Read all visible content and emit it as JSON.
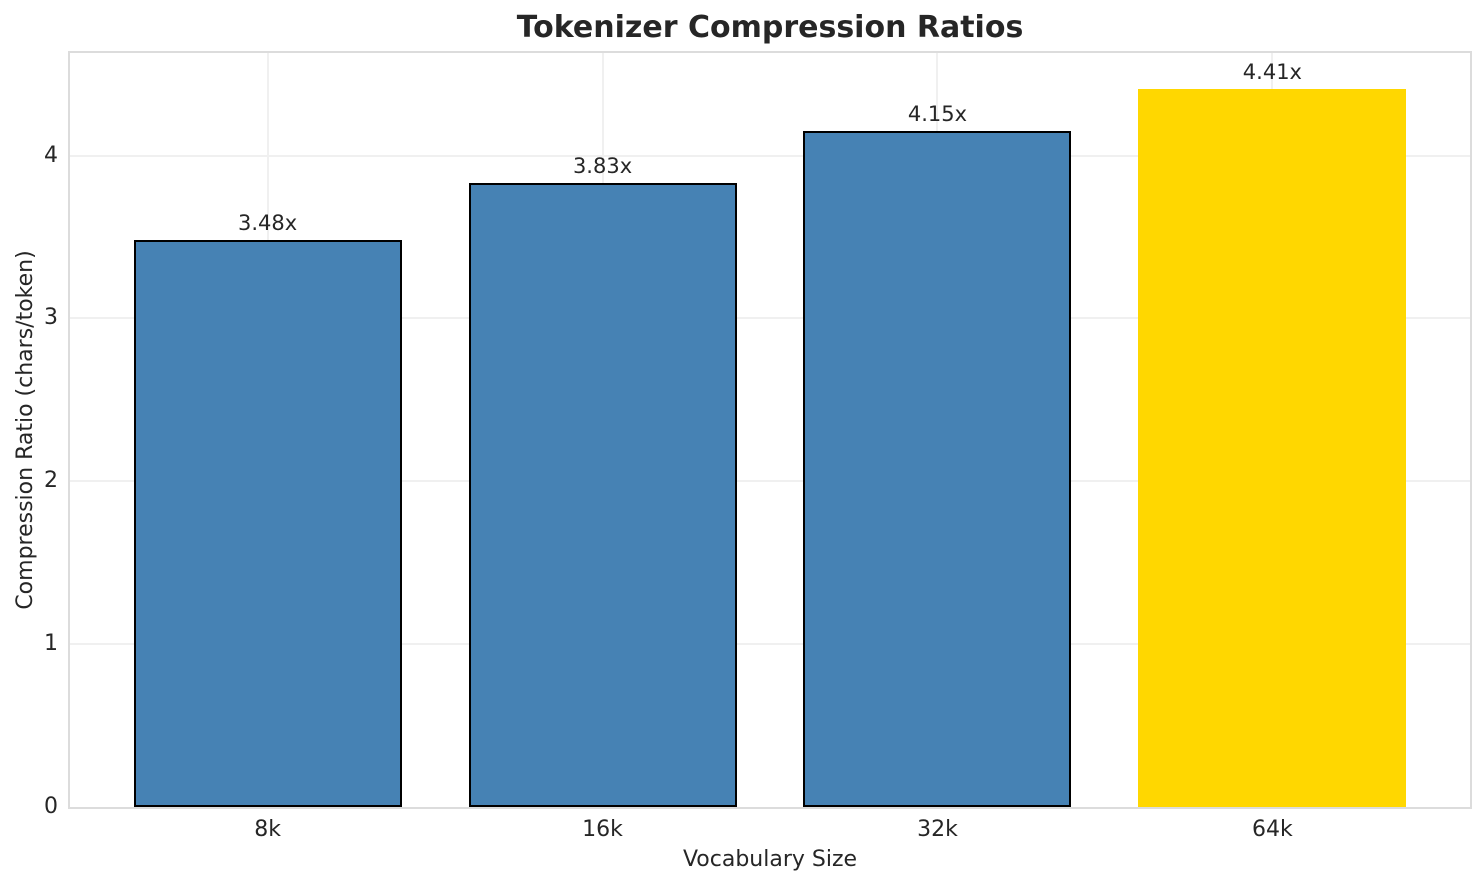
{
  "chart_data": {
    "type": "bar",
    "title": "Tokenizer Compression Ratios",
    "xlabel": "Vocabulary Size",
    "ylabel": "Compression Ratio (chars/token)",
    "categories": [
      "8k",
      "16k",
      "32k",
      "64k"
    ],
    "values": [
      3.48,
      3.83,
      4.15,
      4.41
    ],
    "value_labels": [
      "3.48x",
      "3.83x",
      "4.15x",
      "4.41x"
    ],
    "yticks": [
      0,
      1,
      2,
      3,
      4
    ],
    "ylim": [
      0,
      4.63
    ],
    "xlim": [
      -0.59,
      3.59
    ],
    "bar_width": 0.8,
    "grid": true,
    "legend": "none",
    "bar_fills": [
      "#4682B4",
      "#4682B4",
      "#4682B4",
      "#FFD700"
    ],
    "bar_edges": [
      "#000000",
      "#000000",
      "#000000",
      "none"
    ],
    "highlight_index": 3
  },
  "colors": {
    "bar_blue": "#4682B4",
    "bar_gold": "#FFD700",
    "bar_edge": "#000000",
    "grid": "#f0f0f0",
    "spine": "#dcdcdc",
    "text": "#262626",
    "background": "#ffffff"
  }
}
